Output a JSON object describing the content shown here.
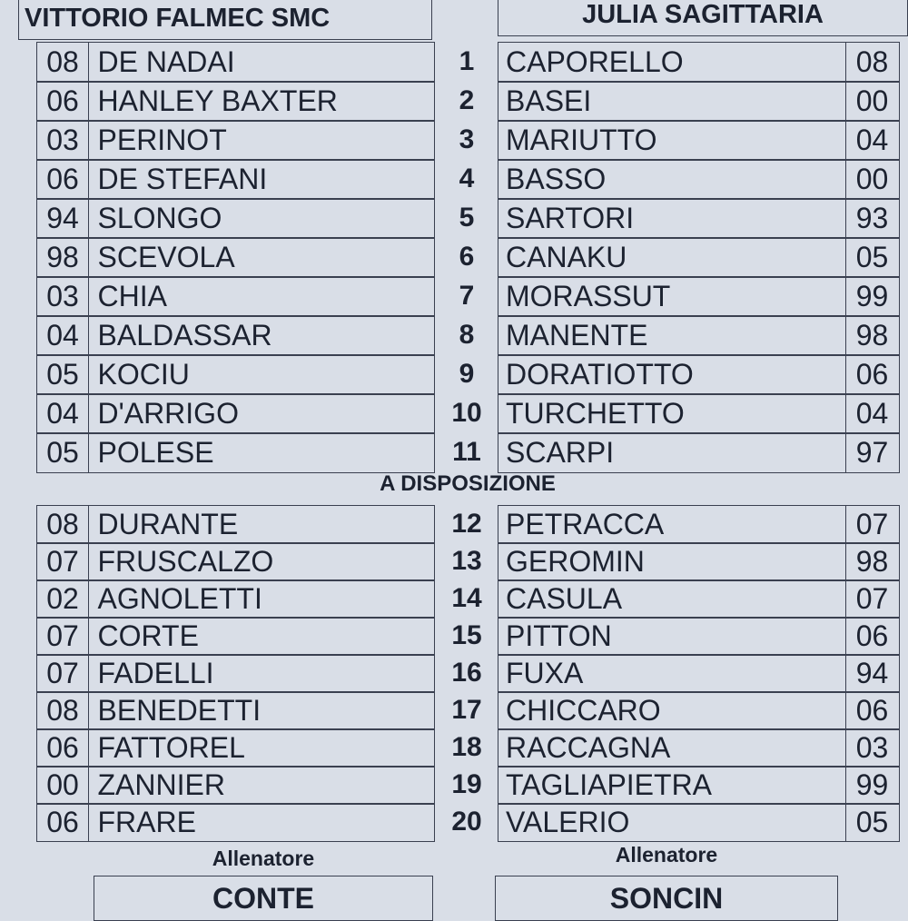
{
  "subs_heading": "A DISPOSIZIONE",
  "numbers": {
    "starters": [
      "1",
      "2",
      "3",
      "4",
      "5",
      "6",
      "7",
      "8",
      "9",
      "10",
      "11"
    ],
    "subs": [
      "12",
      "13",
      "14",
      "15",
      "16",
      "17",
      "18",
      "19",
      "20"
    ]
  },
  "home": {
    "team": "VITTORIO FALMEC SMC",
    "starters": [
      {
        "year": "08",
        "name": "DE NADAI"
      },
      {
        "year": "06",
        "name": "HANLEY BAXTER"
      },
      {
        "year": "03",
        "name": "PERINOT"
      },
      {
        "year": "06",
        "name": "DE STEFANI"
      },
      {
        "year": "94",
        "name": "SLONGO"
      },
      {
        "year": "98",
        "name": "SCEVOLA"
      },
      {
        "year": "03",
        "name": "CHIA"
      },
      {
        "year": "04",
        "name": "BALDASSAR"
      },
      {
        "year": "05",
        "name": "KOCIU"
      },
      {
        "year": "04",
        "name": "D'ARRIGO"
      },
      {
        "year": "05",
        "name": "POLESE"
      }
    ],
    "subs": [
      {
        "year": "08",
        "name": "DURANTE"
      },
      {
        "year": "07",
        "name": "FRUSCALZO"
      },
      {
        "year": "02",
        "name": "AGNOLETTI"
      },
      {
        "year": "07",
        "name": "CORTE"
      },
      {
        "year": "07",
        "name": "FADELLI"
      },
      {
        "year": "08",
        "name": "BENEDETTI"
      },
      {
        "year": "06",
        "name": "FATTOREL"
      },
      {
        "year": "00",
        "name": "ZANNIER"
      },
      {
        "year": "06",
        "name": "FRARE"
      }
    ],
    "coach_label": "Allenatore",
    "coach": "CONTE"
  },
  "away": {
    "team": "JULIA SAGITTARIA",
    "starters": [
      {
        "name": "CAPORELLO",
        "year": "08"
      },
      {
        "name": "BASEI",
        "year": "00"
      },
      {
        "name": "MARIUTTO",
        "year": "04"
      },
      {
        "name": "BASSO",
        "year": "00"
      },
      {
        "name": "SARTORI",
        "year": "93"
      },
      {
        "name": "CANAKU",
        "year": "05"
      },
      {
        "name": "MORASSUT",
        "year": "99"
      },
      {
        "name": "MANENTE",
        "year": "98"
      },
      {
        "name": "DORATIOTTO",
        "year": "06"
      },
      {
        "name": "TURCHETTO",
        "year": "04"
      },
      {
        "name": "SCARPI",
        "year": "97"
      }
    ],
    "subs": [
      {
        "name": "PETRACCA",
        "year": "07"
      },
      {
        "name": "GEROMIN",
        "year": "98"
      },
      {
        "name": "CASULA",
        "year": "07"
      },
      {
        "name": "PITTON",
        "year": "06"
      },
      {
        "name": "FUXA",
        "year": "94"
      },
      {
        "name": "CHICCARO",
        "year": "06"
      },
      {
        "name": "RACCAGNA",
        "year": "03"
      },
      {
        "name": "TAGLIAPIETRA",
        "year": "99"
      },
      {
        "name": "VALERIO",
        "year": "05"
      }
    ],
    "coach_label": "Allenatore",
    "coach": "SONCIN"
  }
}
